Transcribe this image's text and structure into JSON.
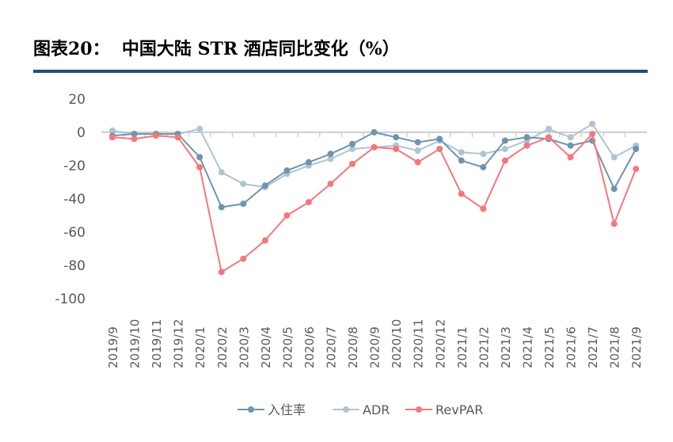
{
  "title": "图表20：  中国大陆 STR 酒店同比变化（%）",
  "chart_data": {
    "type": "line",
    "title": "",
    "xlabel": "",
    "ylabel": "",
    "ylim": [
      -100,
      20
    ],
    "yticks": [
      20,
      0,
      -20,
      -40,
      -60,
      -80,
      -100
    ],
    "grid": false,
    "legend": "bottom",
    "categories": [
      "2019/9",
      "2019/10",
      "2019/11",
      "2019/12",
      "2020/1",
      "2020/2",
      "2020/3",
      "2020/4",
      "2020/5",
      "2020/6",
      "2020/7",
      "2020/8",
      "2020/9",
      "2020/10",
      "2020/11",
      "2020/12",
      "2021/1",
      "2021/2",
      "2021/3",
      "2021/4",
      "2021/5",
      "2021/6",
      "2021/7",
      "2021/8",
      "2021/9"
    ],
    "series": [
      {
        "name": "入住率",
        "color": "#6f94ae",
        "values": [
          -2,
          -1,
          -1,
          -1,
          -15,
          -45,
          -43,
          -32,
          -23,
          -18,
          -13,
          -7,
          0,
          -3,
          -6,
          -4,
          -17,
          -21,
          -5,
          -3,
          -4,
          -8,
          -5,
          -34,
          -10
        ]
      },
      {
        "name": "ADR",
        "color": "#aec4d3",
        "values": [
          1,
          -1,
          -1,
          -1,
          2,
          -24,
          -31,
          -33,
          -25,
          -20,
          -16,
          -10,
          -9,
          -8,
          -11,
          -5,
          -12,
          -13,
          -10,
          -5,
          2,
          -3,
          5,
          -15,
          -8
        ]
      },
      {
        "name": "RevPAR",
        "color": "#f4777b",
        "values": [
          -3,
          -4,
          -2,
          -3,
          -21,
          -84,
          -76,
          -65,
          -50,
          -42,
          -31,
          -19,
          -9,
          -10,
          -18,
          -10,
          -37,
          -46,
          -17,
          -8,
          -3,
          -15,
          -1,
          -55,
          -22
        ]
      }
    ]
  }
}
